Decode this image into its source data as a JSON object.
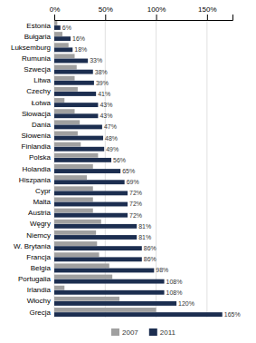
{
  "chart_data": {
    "type": "bar",
    "orientation": "horizontal",
    "categories": [
      "Estonia",
      "Bułgaria",
      "Luksemburg",
      "Rumunia",
      "Szwecja",
      "Litwa",
      "Czechy",
      "Łotwa",
      "Słowacja",
      "Dania",
      "Słowenia",
      "Finlandia",
      "Polska",
      "Holandia",
      "Hiszpania",
      "Cypr",
      "Malta",
      "Austria",
      "Węgry",
      "Niemcy",
      "W. Brytania",
      "Francja",
      "Belgia",
      "Portugalia",
      "Irlandia",
      "Włochy",
      "Grecja"
    ],
    "series": [
      {
        "name": "2007",
        "color": "#a0a0a0",
        "values": [
          3,
          8,
          14,
          20,
          22,
          20,
          23,
          10,
          20,
          25,
          23,
          26,
          43,
          38,
          32,
          38,
          38,
          38,
          46,
          41,
          42,
          44,
          54,
          57,
          10,
          64,
          100
        ]
      },
      {
        "name": "2011",
        "color": "#1c2e50",
        "data_labels": true,
        "values": [
          6,
          16,
          18,
          33,
          38,
          39,
          41,
          43,
          43,
          47,
          48,
          49,
          56,
          65,
          69,
          72,
          72,
          72,
          81,
          81,
          86,
          86,
          98,
          108,
          108,
          120,
          165
        ],
        "value_labels": [
          "6%",
          "16%",
          "18%",
          "33%",
          "38%",
          "39%",
          "41%",
          "43%",
          "43%",
          "47%",
          "48%",
          "49%",
          "56%",
          "65%",
          "69%",
          "72%",
          "72%",
          "72%",
          "81%",
          "81%",
          "86%",
          "86%",
          "98%",
          "108%",
          "108%",
          "120%",
          "165%"
        ]
      }
    ],
    "xlim": [
      0,
      175
    ],
    "xticks": [
      {
        "value": 0,
        "label": "0%"
      },
      {
        "value": 50,
        "label": "50%"
      },
      {
        "value": 100,
        "label": "100%"
      },
      {
        "value": 150,
        "label": "150%"
      }
    ],
    "grid": true,
    "legend": "bottom"
  }
}
